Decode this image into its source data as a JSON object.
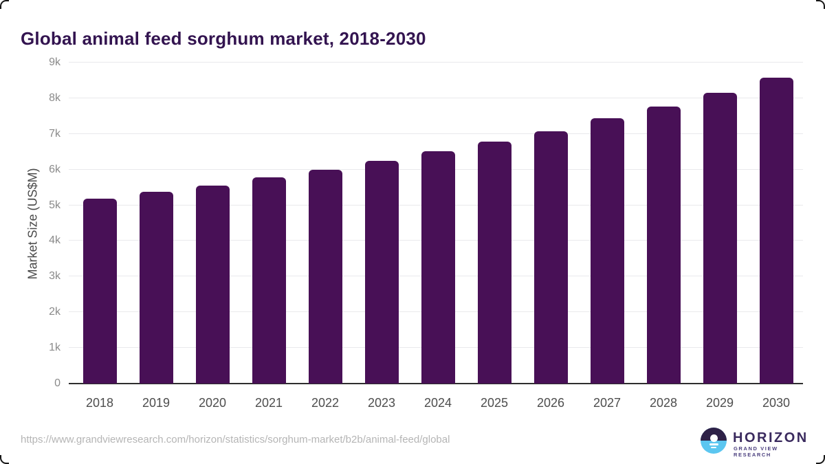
{
  "title": "Global animal feed sorghum market, 2018-2030",
  "chart_data": {
    "type": "bar",
    "title": "Global animal feed sorghum market, 2018-2030",
    "categories": [
      "2018",
      "2019",
      "2020",
      "2021",
      "2022",
      "2023",
      "2024",
      "2025",
      "2026",
      "2027",
      "2028",
      "2029",
      "2030"
    ],
    "values": [
      5190,
      5370,
      5560,
      5780,
      6000,
      6250,
      6510,
      6780,
      7080,
      7430,
      7770,
      8150,
      8570
    ],
    "xlabel": "",
    "ylabel": "Market Size (US$M)",
    "ylim": [
      0,
      9000
    ],
    "yticks": [
      "0",
      "1k",
      "2k",
      "3k",
      "4k",
      "5k",
      "6k",
      "7k",
      "8k",
      "9k"
    ],
    "grid": true,
    "legend": null,
    "bar_color": "#481056"
  },
  "footer": {
    "source_url": "https://www.grandviewresearch.com/horizon/statistics/sorghum-market/b2b/animal-feed/global",
    "logo": {
      "icon": "horizon-sunrise-logo",
      "name": "HORIZON",
      "subtitle": "GRAND VIEW RESEARCH"
    }
  },
  "colors": {
    "title_text": "#331450",
    "bar": "#481056",
    "gridline": "#e9e9ec",
    "axis_line": "#2e2e2e",
    "y_tick_text": "#8a8a8a",
    "x_tick_text": "#4d4d4d",
    "axis_title_text": "#4a4a4a",
    "url_text": "#b5b5b5",
    "logo_dark": "#2e2147",
    "logo_blue": "#5bc6f0",
    "logo_name_text": "#3a2a5e",
    "logo_subtitle_text": "#4a3e7e"
  }
}
